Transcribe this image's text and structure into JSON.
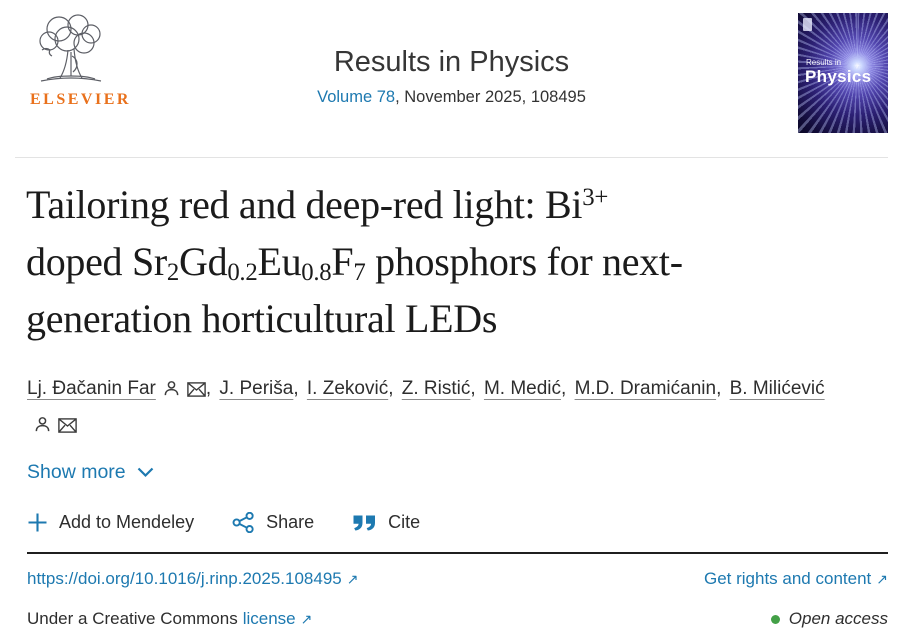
{
  "colors": {
    "accent_blue": "#1d79b0",
    "elsevier_orange": "#e9711c",
    "open_access_green": "#43a047",
    "text_dark": "#2e2e2e"
  },
  "icons": {
    "external_link": "↗"
  },
  "header": {
    "elsevier_wordmark": "ELSEVIER",
    "journal_title": "Results in Physics",
    "volume_link": "Volume 78",
    "issue_suffix": ", November 2025, 108495",
    "cover": {
      "title_small": "Results in",
      "title_large": "Physics"
    }
  },
  "article": {
    "title_segments": [
      {
        "t": "Tailoring red and deep-red light: Bi",
        "s": "n"
      },
      {
        "t": "3+",
        "s": "sup"
      },
      {
        "t": "",
        "s": "br"
      },
      {
        "t": "doped Sr",
        "s": "n"
      },
      {
        "t": "2",
        "s": "sub"
      },
      {
        "t": "Gd",
        "s": "n"
      },
      {
        "t": "0.2",
        "s": "sub"
      },
      {
        "t": "Eu",
        "s": "n"
      },
      {
        "t": "0.8",
        "s": "sub"
      },
      {
        "t": "F",
        "s": "n"
      },
      {
        "t": "7",
        "s": "sub"
      },
      {
        "t": " phosphors for next-",
        "s": "n"
      },
      {
        "t": "",
        "s": "br"
      },
      {
        "t": "generation horticultural LEDs",
        "s": "n"
      }
    ],
    "authors": [
      {
        "name": "Lj. Đačanin Far",
        "person_icon": true,
        "email_icon": true
      },
      {
        "name": "J. Periša"
      },
      {
        "name": "I. Zeković"
      },
      {
        "name": "Z. Ristić"
      },
      {
        "name": "M. Medić"
      },
      {
        "name": "M.D. Dramićanin"
      },
      {
        "name": "B. Milićević",
        "person_icon": true,
        "email_icon": true
      }
    ],
    "show_more_label": "Show more"
  },
  "actions": {
    "mendeley": "Add to Mendeley",
    "share": "Share",
    "cite": "Cite"
  },
  "links": {
    "doi": "https://doi.org/10.1016/j.rinp.2025.108495",
    "rights": "Get rights and content",
    "license_prefix": "Under a Creative Commons",
    "license_link": "license",
    "open_access": "Open access"
  }
}
